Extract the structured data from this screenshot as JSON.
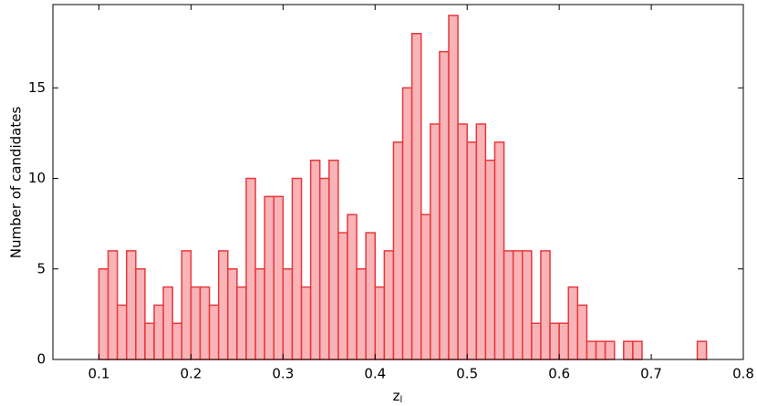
{
  "chart_data": {
    "type": "histogram",
    "x_label": "z",
    "x_label_sub": "l",
    "y_label": "Number of candidates",
    "bins": [
      0.1,
      0.11,
      0.12,
      0.13,
      0.14,
      0.15,
      0.16,
      0.17,
      0.18,
      0.19,
      0.2,
      0.21,
      0.22,
      0.23,
      0.24,
      0.25,
      0.26,
      0.27,
      0.28,
      0.29,
      0.3,
      0.31,
      0.32,
      0.33,
      0.34,
      0.35,
      0.36,
      0.37,
      0.38,
      0.39,
      0.4,
      0.41,
      0.42,
      0.43,
      0.44,
      0.45,
      0.46,
      0.47,
      0.48,
      0.49,
      0.5,
      0.51,
      0.52,
      0.53,
      0.54,
      0.55,
      0.56,
      0.57,
      0.58,
      0.59,
      0.6,
      0.61,
      0.62,
      0.63,
      0.64,
      0.65,
      0.66,
      0.67,
      0.68,
      0.69,
      0.7,
      0.71,
      0.72,
      0.73,
      0.74,
      0.75,
      0.76
    ],
    "values": [
      5,
      6,
      3,
      6,
      5,
      2,
      3,
      4,
      2,
      6,
      4,
      4,
      3,
      6,
      5,
      4,
      10,
      5,
      9,
      9,
      5,
      10,
      4,
      11,
      10,
      11,
      7,
      8,
      5,
      7,
      4,
      6,
      12,
      15,
      18,
      8,
      13,
      17,
      19,
      13,
      12,
      13,
      11,
      12,
      6,
      6,
      6,
      2,
      6,
      2,
      2,
      4,
      3,
      1,
      1,
      1,
      0,
      1,
      1,
      0,
      0,
      0,
      0,
      0,
      0,
      1
    ],
    "color": "#e8383d",
    "fill": "#f8b4b6",
    "xlim": [
      0.05,
      0.8
    ],
    "ylim": [
      0,
      19.6
    ],
    "xticks": [
      0.1,
      0.2,
      0.3,
      0.4,
      0.5,
      0.6,
      0.7,
      0.8
    ],
    "yticks": [
      0,
      5,
      10,
      15
    ]
  }
}
